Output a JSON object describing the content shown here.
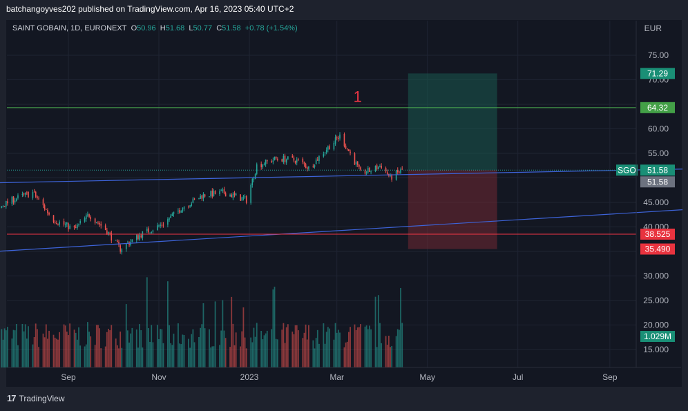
{
  "header": {
    "text": "batchangoyves202 published on TradingView.com, Apr 16, 2023 05:40 UTC+2"
  },
  "legend": {
    "symbol": "SAINT GOBAIN, 1D, EURONEXT",
    "o_label": "O",
    "o": "50.96",
    "h_label": "H",
    "h": "51.68",
    "l_label": "L",
    "l": "50.77",
    "c_label": "C",
    "c": "51.58",
    "change": "+0.78 (+1.54%)"
  },
  "footer": {
    "logo_icon": "tradingview-logo-icon",
    "brand": "TradingView"
  },
  "colors": {
    "up": "#26a69a",
    "down": "#ef5350",
    "trendline": "#3d63d8",
    "target": "#4caf50",
    "stop": "#f23645",
    "background": "#131722"
  },
  "chart_data": {
    "type": "candlestick",
    "currency": "EUR",
    "price_ticks": [
      15,
      20,
      25,
      30,
      35,
      40,
      45,
      50,
      55,
      60,
      65,
      70,
      75
    ],
    "price_tick_labels": [
      "15.000",
      "20.000",
      "25.000",
      "30.000",
      "",
      "40.000",
      "45.000",
      "",
      "55.00",
      "60.00",
      "",
      "70.00",
      "75.00"
    ],
    "time_labels": [
      {
        "label": "Sep",
        "date": "2022-09-01"
      },
      {
        "label": "Nov",
        "date": "2022-11-01"
      },
      {
        "label": "2023",
        "date": "2023-01-01"
      },
      {
        "label": "Mar",
        "date": "2023-03-01"
      },
      {
        "label": "May",
        "date": "2023-05-01"
      },
      {
        "label": "Jul",
        "date": "2023-07-01"
      },
      {
        "label": "Sep",
        "date": "2023-09-01"
      }
    ],
    "start_date": "2022-07-14",
    "end_date": "2023-04-14",
    "price_path": [
      [
        "2022-07-14",
        43.5
      ],
      [
        "2022-07-25",
        45.5
      ],
      [
        "2022-08-08",
        47.0
      ],
      [
        "2022-08-22",
        41.5
      ],
      [
        "2022-09-05",
        39.5
      ],
      [
        "2022-09-15",
        42.5
      ],
      [
        "2022-09-26",
        39.5
      ],
      [
        "2022-10-06",
        35.5
      ],
      [
        "2022-10-20",
        38.5
      ],
      [
        "2022-11-03",
        40.5
      ],
      [
        "2022-11-17",
        44.0
      ],
      [
        "2022-12-01",
        46.5
      ],
      [
        "2022-12-15",
        47.0
      ],
      [
        "2022-12-30",
        45.5
      ],
      [
        "2023-01-06",
        52.5
      ],
      [
        "2023-01-20",
        54.0
      ],
      [
        "2023-02-03",
        53.5
      ],
      [
        "2023-02-10",
        52.0
      ],
      [
        "2023-02-24",
        56.5
      ],
      [
        "2023-03-03",
        58.5
      ],
      [
        "2023-03-10",
        55.0
      ],
      [
        "2023-03-17",
        51.0
      ],
      [
        "2023-03-24",
        51.5
      ],
      [
        "2023-03-31",
        52.5
      ],
      [
        "2023-04-06",
        50.0
      ],
      [
        "2023-04-14",
        51.6
      ]
    ],
    "volume_scale_max": "approx 2.1M",
    "volume_last": "1.029M",
    "trendlines": [
      {
        "start": [
          "2022-07-14",
          49.0
        ],
        "end": [
          "2023-10-20",
          51.8
        ]
      },
      {
        "start": [
          "2022-07-14",
          35.0
        ],
        "end": [
          "2023-10-20",
          43.5
        ]
      }
    ],
    "horizontal_levels": [
      {
        "price": 64.32,
        "label": "64.32",
        "color": "#4caf50"
      },
      {
        "price": 38.525,
        "label": "38.525",
        "color": "#f23645"
      }
    ],
    "position": {
      "start": "2023-04-18",
      "end": "2023-06-17",
      "entry": 51.58,
      "target": 71.29,
      "stop": 35.49,
      "target_label": "71.29",
      "stop_label": "35.490"
    },
    "last_price": {
      "symbol": "SGO",
      "value": "51.58",
      "second_value": "51.58"
    },
    "annotation": {
      "text": "1",
      "date": "2023-03-15",
      "price": 65.5,
      "color": "#f23645"
    }
  }
}
